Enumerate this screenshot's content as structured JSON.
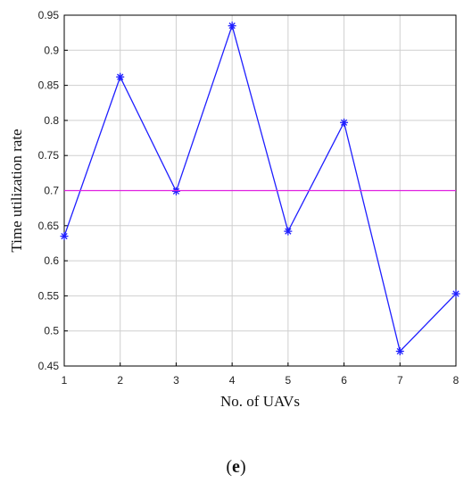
{
  "chart_data": {
    "type": "line",
    "xlabel": "No. of UAVs",
    "ylabel": "Time utilization rate",
    "x": [
      1,
      2,
      3,
      4,
      5,
      6,
      7,
      8
    ],
    "xlim": [
      1,
      8
    ],
    "ylim": [
      0.45,
      0.95
    ],
    "xticks": [
      "1",
      "2",
      "3",
      "4",
      "5",
      "6",
      "7",
      "8"
    ],
    "yticks": [
      "0.45",
      "0.5",
      "0.55",
      "0.6",
      "0.65",
      "0.7",
      "0.75",
      "0.8",
      "0.85",
      "0.9",
      "0.95"
    ],
    "grid": true,
    "series": [
      {
        "values": [
          0.635,
          0.862,
          0.699,
          0.935,
          0.642,
          0.797,
          0.471,
          0.553
        ],
        "color": "#1f1fff",
        "marker": "asterisk"
      },
      {
        "values": [
          0.7,
          0.7,
          0.7,
          0.7,
          0.7,
          0.7,
          0.7,
          0.7
        ],
        "color": "#e020e0",
        "marker": "none"
      }
    ]
  },
  "caption": {
    "open": "(",
    "letter": "e",
    "close": ")"
  }
}
